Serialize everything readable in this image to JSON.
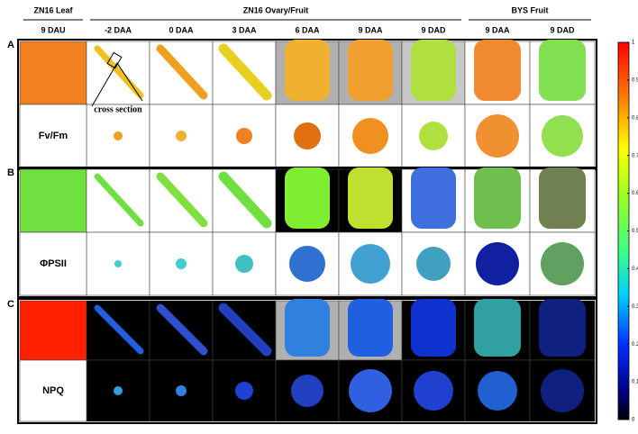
{
  "headers": [
    "ZN16 Leaf",
    "ZN16 Ovary/Fruit",
    "BYS Fruit"
  ],
  "columns": [
    "9 DAU",
    "-2 DAA",
    "0 DAA",
    "3 DAA",
    "6 DAA",
    "9 DAA",
    "9 DAD",
    "9 DAA",
    "9 DAD"
  ],
  "panels": [
    {
      "letter": "A",
      "parameter": "Fv/Fm"
    },
    {
      "letter": "B",
      "parameter": "ΦPSII"
    },
    {
      "letter": "C",
      "parameter": "NPQ"
    }
  ],
  "annotation": "cross section",
  "colorbar": {
    "range": [
      0,
      1
    ],
    "ticks": [
      0,
      0.1,
      0.2,
      0.3,
      0.4,
      0.5,
      0.6,
      0.7,
      0.8,
      0.9,
      1
    ]
  }
}
